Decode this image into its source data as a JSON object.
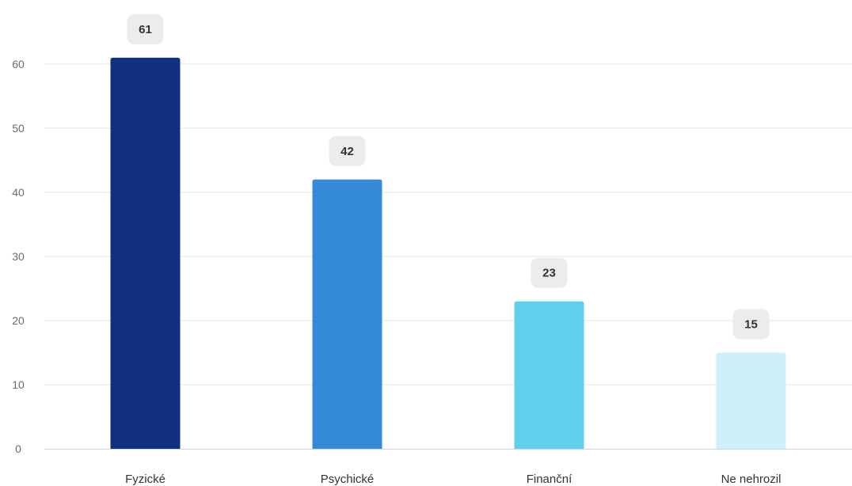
{
  "chart_data": {
    "type": "bar",
    "categories": [
      "Fyzické",
      "Psychické",
      "Finanční",
      "Ne nehrozil"
    ],
    "values": [
      61,
      42,
      23,
      15
    ],
    "data_labels": [
      "61",
      "42",
      "23",
      "15"
    ],
    "bar_colors": [
      "#11307f",
      "#358ad8",
      "#5fcfee",
      "#cdf1f8"
    ],
    "ylim": [
      0,
      60
    ],
    "yticks": [
      0,
      10,
      20,
      30,
      40,
      50,
      60
    ],
    "grid": true,
    "title": "",
    "xlabel": "",
    "ylabel": ""
  },
  "colors": {
    "grid": "#e6e6e6",
    "axis": "#ccd6eb",
    "label_bg": "#ececec"
  }
}
